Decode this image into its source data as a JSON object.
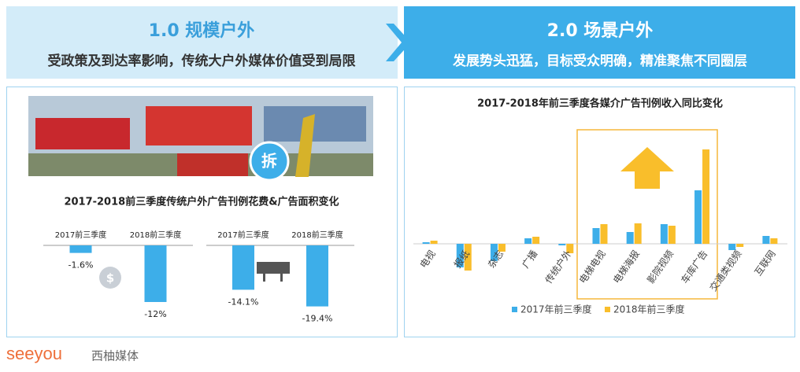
{
  "header": {
    "left": {
      "title": "1.0 规模户外",
      "subtitle": "受政策及到达率影响，传统大户外媒体价值受到局限",
      "badge": "拆"
    },
    "right": {
      "title": "2.0 场景户外",
      "subtitle": "发展势头迅猛，目标受众明确，精准聚焦不同圈层"
    }
  },
  "footer": {
    "brand": "seeyou",
    "brand_cn": "西柚媒体"
  },
  "chart_data": [
    {
      "type": "bar",
      "title": "2017-2018前三季度传统户外广告刊例花费&广告面积变化",
      "color": "#3daee9",
      "panels": [
        {
          "categories": [
            "2017前三季度",
            "2018前三季度"
          ],
          "values": [
            -1.6,
            -12
          ],
          "value_labels": [
            "-1.6%",
            "-12%"
          ],
          "ylim": [
            -13,
            0
          ]
        },
        {
          "categories": [
            "2017前三季度",
            "2018前三季度"
          ],
          "values": [
            -14.1,
            -19.4
          ],
          "value_labels": [
            "-14.1%",
            "-19.4%"
          ],
          "ylim": [
            -20,
            0
          ]
        }
      ]
    },
    {
      "type": "bar",
      "title": "2017-2018年前三季度各媒介广告刊例收入同比变化",
      "categories": [
        "电视",
        "报纸",
        "杂志",
        "广播",
        "传统户外",
        "电梯电视",
        "电梯海报",
        "影院视频",
        "车库广告",
        "交通类视频",
        "互联网"
      ],
      "series": [
        {
          "name": "2017年前三季度",
          "color": "#3daee9",
          "values": [
            1,
            -15,
            -11,
            3.5,
            -1,
            10,
            7.5,
            12.5,
            34,
            -4,
            5
          ]
        },
        {
          "name": "2018年前三季度",
          "color": "#f9be2b",
          "values": [
            2,
            -17,
            -5,
            4.5,
            -6,
            12.5,
            13,
            11.5,
            60,
            -2,
            3.5
          ]
        }
      ],
      "ylim": [
        -20,
        65
      ],
      "legend": "bottom"
    }
  ]
}
